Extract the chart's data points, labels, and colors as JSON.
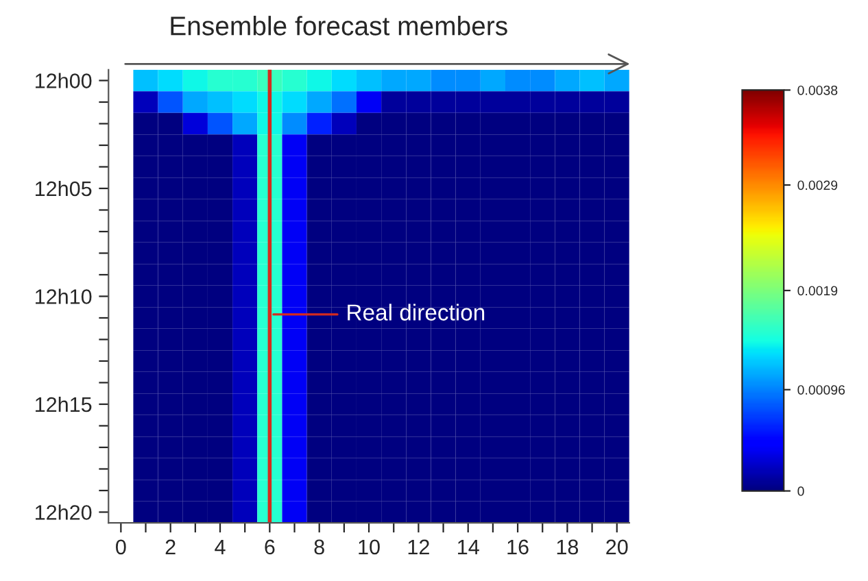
{
  "chart_data": {
    "type": "heatmap",
    "title": "Ensemble forecast members",
    "categories": [
      "0",
      null,
      "2",
      null,
      "4",
      null,
      "6",
      null,
      "8",
      null,
      "10",
      null,
      "12",
      null,
      "14",
      null,
      "16",
      null,
      "18",
      null,
      "20"
    ],
    "y_categories": [
      "12h00",
      null,
      null,
      null,
      null,
      "12h05",
      null,
      null,
      null,
      null,
      "12h10",
      null,
      null,
      null,
      null,
      "12h15",
      null,
      null,
      null,
      null,
      "12h20"
    ],
    "clim": [
      0,
      0.0038
    ],
    "cticks": [
      0,
      0.00096,
      0.0019,
      0.0029,
      0.0038
    ],
    "cells": [
      [
        null,
        0.0012,
        0.0013,
        0.0014,
        0.0015,
        0.0015,
        0.0016,
        0.0015,
        0.0014,
        0.0013,
        0.0012,
        0.0011,
        0.0011,
        0.001,
        0.001,
        0.0011,
        0.001,
        0.001,
        0.0011,
        0.0012,
        0.0011
      ],
      [
        null,
        0.0002,
        0.0008,
        0.0011,
        0.0012,
        0.0013,
        0.0014,
        0.0013,
        0.0011,
        0.0009,
        0.0004,
        0.0001,
        0.0001,
        0.0001,
        0.0001,
        0.0001,
        0.0001,
        0.0001,
        0.0001,
        0.0001,
        0.0001
      ],
      [
        null,
        0,
        0,
        0.0003,
        0.0008,
        0.0011,
        0.0014,
        0.001,
        0.0006,
        0.0002,
        0,
        0,
        0,
        0,
        0,
        0,
        0,
        0,
        0,
        0,
        0
      ],
      [
        null,
        0,
        0,
        0,
        0,
        0.0002,
        0.0015,
        0.0004,
        0,
        0,
        0,
        0,
        0,
        0,
        0,
        0,
        0,
        0,
        0,
        0,
        0
      ],
      [
        null,
        0,
        0,
        0,
        0,
        0.0002,
        0.0015,
        0.0004,
        0,
        0,
        0,
        0,
        0,
        0,
        0,
        0,
        0,
        0,
        0,
        0,
        0
      ],
      [
        null,
        0,
        0,
        0,
        0,
        0.0002,
        0.0015,
        0.0004,
        0,
        0,
        0,
        0,
        0,
        0,
        0,
        0,
        0,
        0,
        0,
        0,
        0
      ],
      [
        null,
        0,
        0,
        0,
        0,
        0.0002,
        0.0015,
        0.0004,
        0,
        0,
        0,
        0,
        0,
        0,
        0,
        0,
        0,
        0,
        0,
        0,
        0
      ],
      [
        null,
        0,
        0,
        0,
        0,
        0.0002,
        0.0015,
        0.0004,
        0,
        0,
        0,
        0,
        0,
        0,
        0,
        0,
        0,
        0,
        0,
        0,
        0
      ],
      [
        null,
        0,
        0,
        0,
        0,
        0.0002,
        0.0015,
        0.0004,
        0,
        0,
        0,
        0,
        0,
        0,
        0,
        0,
        0,
        0,
        0,
        0,
        0
      ],
      [
        null,
        0,
        0,
        0,
        0,
        0.0002,
        0.0015,
        0.0004,
        0,
        0,
        0,
        0,
        0,
        0,
        0,
        0,
        0,
        0,
        0,
        0,
        0
      ],
      [
        null,
        0,
        0,
        0,
        0,
        0.0002,
        0.0015,
        0.0004,
        0,
        0,
        0,
        0,
        0,
        0,
        0,
        0,
        0,
        0,
        0,
        0,
        0
      ],
      [
        null,
        0,
        0,
        0,
        0,
        0.0002,
        0.0015,
        0.0004,
        0,
        0,
        0,
        0,
        0,
        0,
        0,
        0,
        0,
        0,
        0,
        0,
        0
      ],
      [
        null,
        0,
        0,
        0,
        0,
        0.0002,
        0.0015,
        0.0004,
        0,
        0,
        0,
        0,
        0,
        0,
        0,
        0,
        0,
        0,
        0,
        0,
        0
      ],
      [
        null,
        0,
        0,
        0,
        0,
        0.0002,
        0.0015,
        0.0004,
        0,
        0,
        0,
        0,
        0,
        0,
        0,
        0,
        0,
        0,
        0,
        0,
        0
      ],
      [
        null,
        0,
        0,
        0,
        0,
        0.0002,
        0.0015,
        0.0004,
        0,
        0,
        0,
        0,
        0,
        0,
        0,
        0,
        0,
        0,
        0,
        0,
        0
      ],
      [
        null,
        0,
        0,
        0,
        0,
        0.0002,
        0.0015,
        0.0004,
        0,
        0,
        0,
        0,
        0,
        0,
        0,
        0,
        0,
        0,
        0,
        0,
        0
      ],
      [
        null,
        0,
        0,
        0,
        0,
        0.0002,
        0.0015,
        0.0004,
        0,
        0,
        0,
        0,
        0,
        0,
        0,
        0,
        0,
        0,
        0,
        0,
        0
      ],
      [
        null,
        0,
        0,
        0,
        0,
        0.0002,
        0.0015,
        0.0004,
        0,
        0,
        0,
        0,
        0,
        0,
        0,
        0,
        0,
        0,
        0,
        0,
        0
      ],
      [
        null,
        0,
        0,
        0,
        0,
        0.0002,
        0.0015,
        0.0004,
        0,
        0,
        0,
        0,
        0,
        0,
        0,
        0,
        0,
        0,
        0,
        0,
        0
      ],
      [
        null,
        0,
        0,
        0,
        0,
        0.0002,
        0.0015,
        0.0004,
        0,
        0,
        0,
        0,
        0,
        0,
        0,
        0,
        0,
        0,
        0,
        0,
        0
      ],
      [
        null,
        0,
        0,
        0,
        0,
        0.0002,
        0.0015,
        0.0004,
        0,
        0,
        0,
        0,
        0,
        0,
        0,
        0,
        0,
        0,
        0,
        0,
        0
      ]
    ],
    "ref_lines": [
      {
        "axis": "x",
        "value": "6",
        "label": null,
        "color": "#d42a1e"
      }
    ],
    "annotations": [
      {
        "text": "Real direction",
        "x": "6"
      }
    ],
    "grid": false
  }
}
